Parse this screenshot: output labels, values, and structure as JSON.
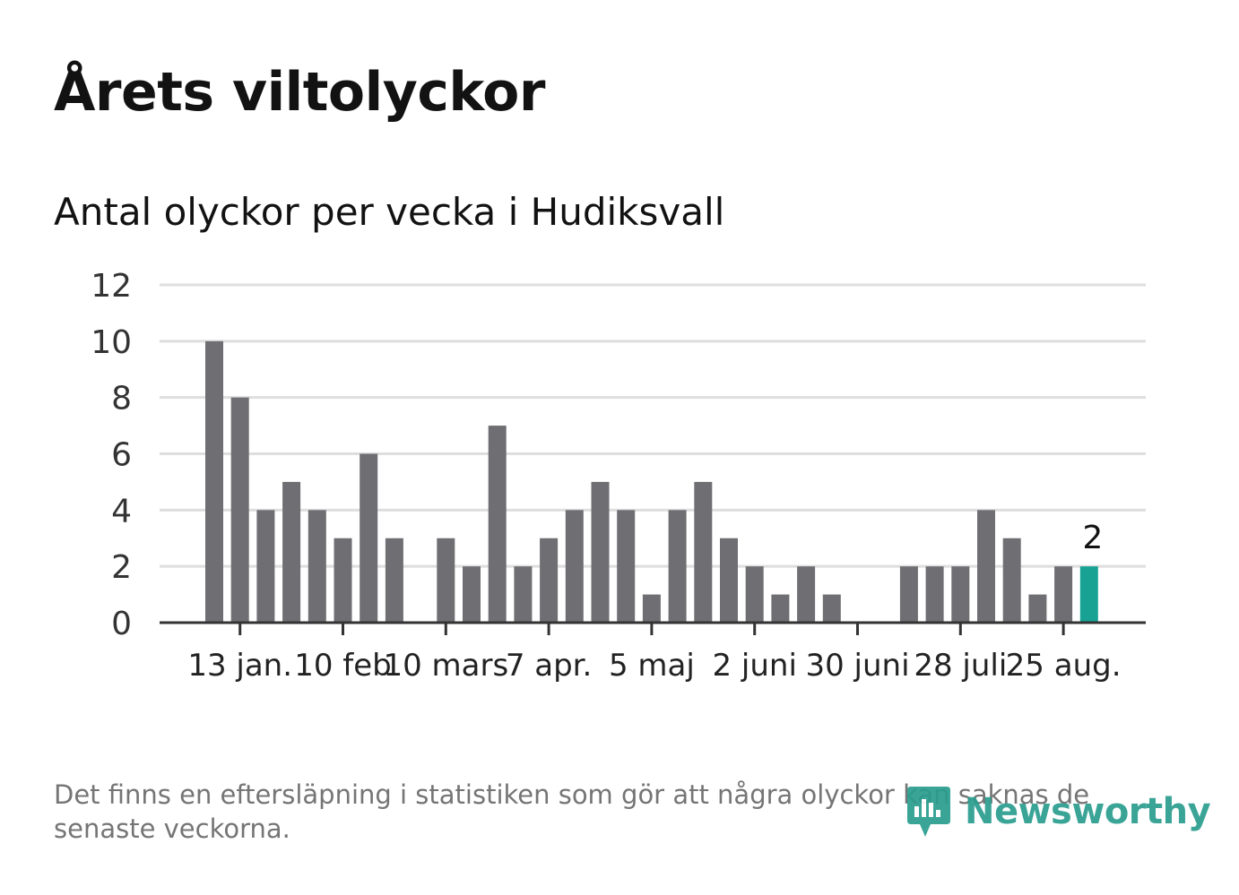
{
  "title": "Årets viltolyckor",
  "subtitle": "Antal olyckor per vecka i Hudiksvall",
  "footnote": "Det finns en eftersläpning i statistiken som gör att några olyckor kan saknas de senaste veckorna.",
  "logo": {
    "text": "Newsworthy",
    "color": "#2a9d8f",
    "icon": "newsworthy-logo-icon"
  },
  "colors": {
    "bar": "#6f6e73",
    "highlight": "#17a294",
    "grid": "#dedede",
    "axis": "#333333"
  },
  "chart_data": {
    "type": "bar",
    "ylim": [
      0,
      12
    ],
    "yticks": [
      "0",
      "2",
      "4",
      "6",
      "8",
      "10",
      "12"
    ],
    "grid": true,
    "x_tick_labels": [
      "13 jan.",
      "10 feb",
      "10 mars",
      "7 apr.",
      "5 maj",
      "2 juni",
      "30 juni",
      "28 juli",
      "25 aug."
    ],
    "x_tick_weeks": [
      2,
      6,
      10,
      14,
      18,
      22,
      26,
      30,
      34
    ],
    "weeks": [
      1,
      2,
      3,
      4,
      5,
      6,
      7,
      8,
      9,
      10,
      11,
      12,
      13,
      14,
      15,
      16,
      17,
      18,
      19,
      20,
      21,
      22,
      23,
      24,
      25,
      26,
      27,
      28,
      29,
      30,
      31,
      32,
      33,
      34,
      35
    ],
    "values": [
      10,
      8,
      4,
      5,
      4,
      3,
      6,
      3,
      0,
      3,
      2,
      7,
      2,
      3,
      4,
      5,
      4,
      1,
      4,
      5,
      3,
      2,
      1,
      2,
      1,
      0,
      0,
      2,
      2,
      2,
      4,
      3,
      1,
      2,
      2
    ],
    "highlight_index": 34,
    "highlight_label": "2"
  }
}
